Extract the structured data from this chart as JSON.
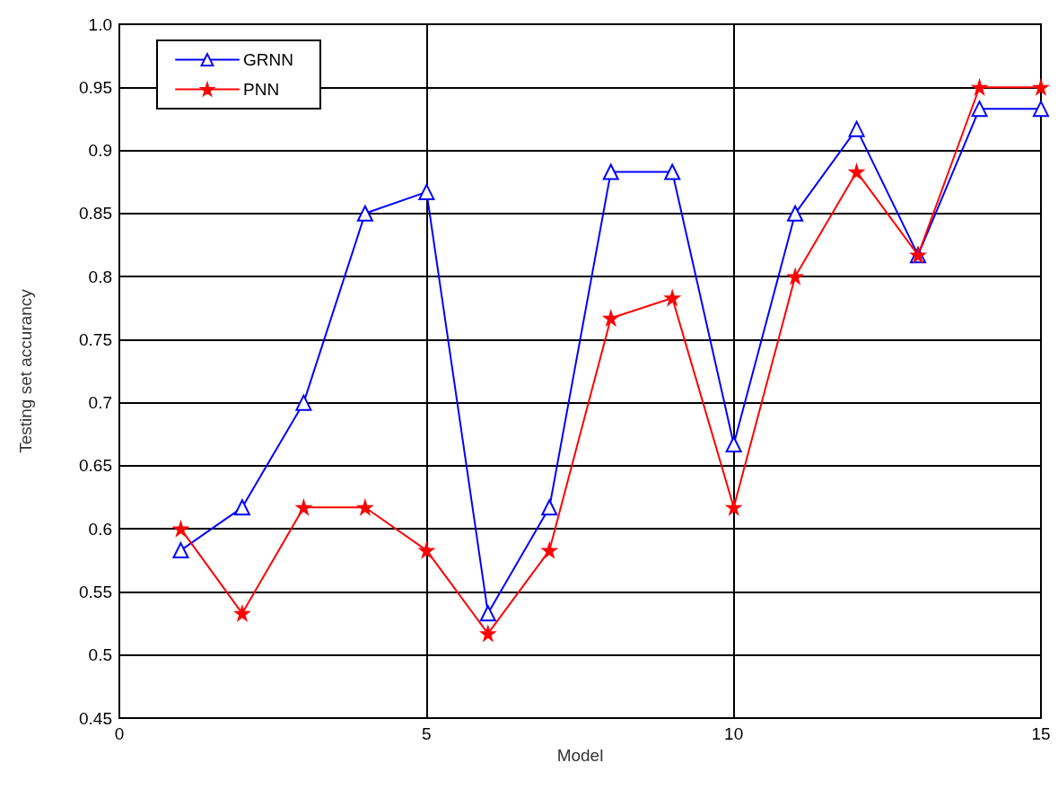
{
  "chart_data": {
    "type": "line",
    "xlabel": "Model",
    "ylabel": "Testing set accurancy",
    "x": [
      1,
      2,
      3,
      4,
      5,
      6,
      7,
      8,
      9,
      10,
      11,
      12,
      13,
      14,
      15
    ],
    "series": [
      {
        "name": "GRNN",
        "color": "#0000ff",
        "marker": "triangle",
        "values": [
          0.583,
          0.617,
          0.7,
          0.85,
          0.867,
          0.533,
          0.617,
          0.883,
          0.883,
          0.667,
          0.85,
          0.917,
          0.817,
          0.933,
          0.933
        ]
      },
      {
        "name": "PNN",
        "color": "#ff0000",
        "marker": "star",
        "values": [
          0.6,
          0.533,
          0.617,
          0.617,
          0.583,
          0.517,
          0.583,
          0.767,
          0.783,
          0.617,
          0.8,
          0.883,
          0.817,
          0.95,
          0.95
        ]
      }
    ],
    "xlim": [
      0,
      15
    ],
    "xticks": [
      0,
      5,
      10,
      15
    ],
    "ylim": [
      0.45,
      1.0
    ],
    "yticks": [
      0.45,
      0.5,
      0.55,
      0.6,
      0.65,
      0.7,
      0.75,
      0.8,
      0.85,
      0.9,
      0.95,
      {
        "value": 1.0,
        "label": "1.0"
      }
    ],
    "grid": true,
    "legend": "top left",
    "line_style": "solid"
  }
}
